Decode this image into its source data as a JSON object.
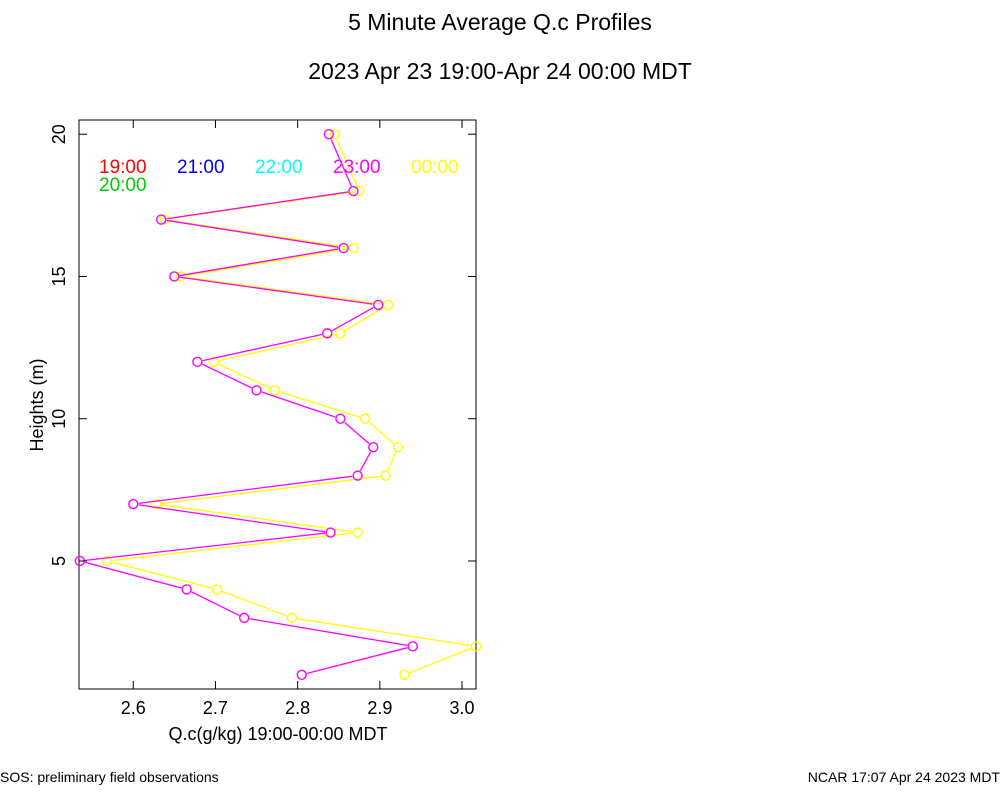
{
  "footer": {
    "left": "SOS: preliminary field observations",
    "right": "NCAR 17:07 Apr 24 2023 MDT"
  },
  "chart_data": {
    "type": "line",
    "title": "5 Minute Average Q.c Profiles",
    "subtitle": "2023 Apr 23 19:00-Apr 24 00:00 MDT",
    "xlabel": "Q.c(g/kg) 19:00-00:00 MDT",
    "ylabel": "Heights (m)",
    "xlim": [
      2.534,
      3.017
    ],
    "ylim": [
      0.5,
      20.5
    ],
    "x_ticks": [
      2.6,
      2.7,
      2.8,
      2.9,
      3.0
    ],
    "x_tick_labels": [
      "2.6",
      "2.7",
      "2.8",
      "2.9",
      "3.0"
    ],
    "y_ticks": [
      5,
      10,
      15,
      20
    ],
    "y_tick_labels": [
      "5",
      "10",
      "15",
      "20"
    ],
    "legend": [
      {
        "label": "19:00",
        "color": "#ff0000"
      },
      {
        "label": "21:00",
        "color": "#0000ff"
      },
      {
        "label": "22:00",
        "color": "#00ffff"
      },
      {
        "label": "23:00",
        "color": "#ff00ff"
      },
      {
        "label": "00:00",
        "color": "#ffff00"
      },
      {
        "label": "20:00",
        "color": "#00cc00"
      }
    ],
    "series": [
      {
        "name": "23:00",
        "color": "#ff00ff",
        "points": [
          {
            "x": 2.805,
            "y": 1
          },
          {
            "x": 2.94,
            "y": 2
          },
          {
            "x": 2.735,
            "y": 3
          },
          {
            "x": 2.665,
            "y": 4
          },
          {
            "x": 2.535,
            "y": 5
          },
          {
            "x": 2.84,
            "y": 6
          },
          {
            "x": 2.6,
            "y": 7
          },
          {
            "x": 2.873,
            "y": 8
          },
          {
            "x": 2.892,
            "y": 9
          },
          {
            "x": 2.852,
            "y": 10
          },
          {
            "x": 2.75,
            "y": 11
          },
          {
            "x": 2.678,
            "y": 12
          },
          {
            "x": 2.836,
            "y": 13
          },
          {
            "x": 2.898,
            "y": 14
          },
          {
            "x": 2.65,
            "y": 15
          },
          {
            "x": 2.856,
            "y": 16
          },
          {
            "x": 2.634,
            "y": 17
          },
          {
            "x": 2.868,
            "y": 18
          },
          {
            "x": 2.838,
            "y": 20
          }
        ]
      },
      {
        "name": "00:00",
        "color": "#ffff00",
        "points": [
          {
            "x": 2.93,
            "y": 1
          },
          {
            "x": 3.017,
            "y": 2
          },
          {
            "x": 2.793,
            "y": 3
          },
          {
            "x": 2.702,
            "y": 4
          },
          {
            "x": 2.568,
            "y": 5
          },
          {
            "x": 2.873,
            "y": 6
          },
          {
            "x": 2.628,
            "y": 7
          },
          {
            "x": 2.907,
            "y": 8
          },
          {
            "x": 2.922,
            "y": 9
          },
          {
            "x": 2.882,
            "y": 10
          },
          {
            "x": 2.772,
            "y": 11
          },
          {
            "x": 2.698,
            "y": 12
          },
          {
            "x": 2.852,
            "y": 13
          },
          {
            "x": 2.91,
            "y": 14
          },
          {
            "x": 2.658,
            "y": 15
          },
          {
            "x": 2.868,
            "y": 16
          },
          {
            "x": 2.638,
            "y": 17
          },
          {
            "x": 2.875,
            "y": 18
          },
          {
            "x": 2.845,
            "y": 20
          }
        ]
      }
    ]
  }
}
